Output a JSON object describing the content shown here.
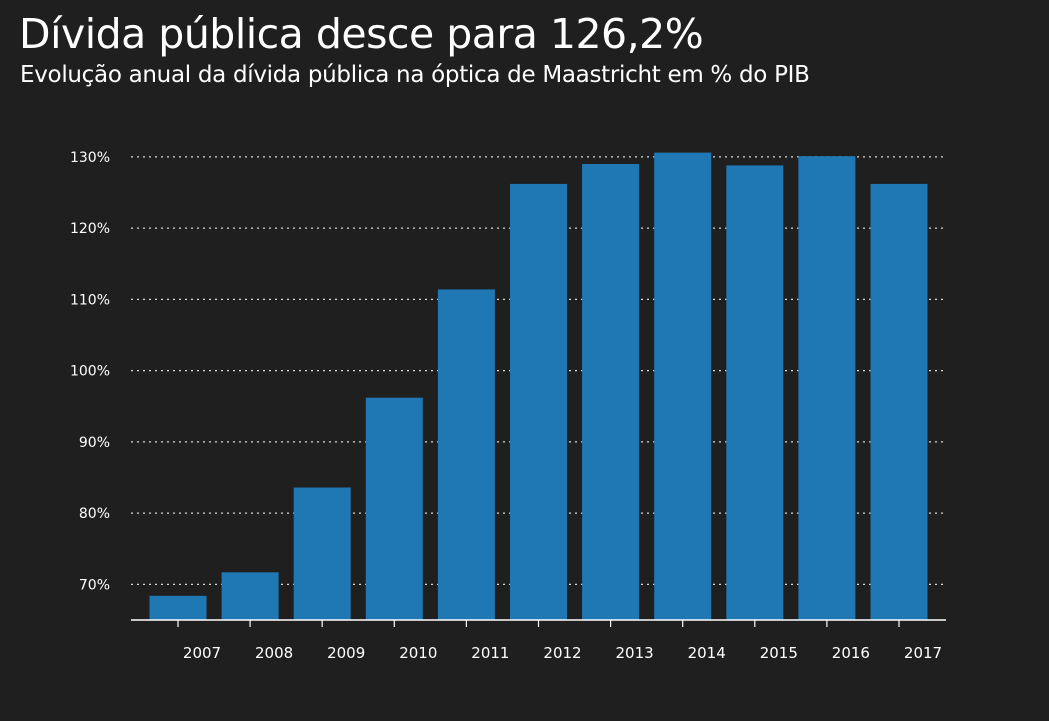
{
  "title": "Dívida pública desce para 126,2%",
  "subtitle": "Evolução anual da dívida pública na óptica de Maastricht em % do PIB",
  "colors": {
    "background": "#1f1f1f",
    "bar": "#1f77b4",
    "text": "#ffffff",
    "grid": "#d8d8d8"
  },
  "chart_data": {
    "type": "bar",
    "title": "Dívida pública desce para 126,2%",
    "subtitle": "Evolução anual da dívida pública na óptica de Maastricht em % do PIB",
    "xlabel": "",
    "ylabel": "",
    "categories": [
      "2007",
      "2008",
      "2009",
      "2010",
      "2011",
      "2012",
      "2013",
      "2014",
      "2015",
      "2016",
      "2017"
    ],
    "values": [
      68.4,
      71.7,
      83.6,
      96.2,
      111.4,
      126.2,
      129.0,
      130.6,
      128.8,
      130.1,
      126.2
    ],
    "ylim": [
      65,
      131
    ],
    "yticks": [
      70,
      80,
      90,
      100,
      110,
      120,
      130
    ],
    "ytick_labels": [
      "70%",
      "80%",
      "90%",
      "100%",
      "110%",
      "120%",
      "130%"
    ],
    "grid": true,
    "legend": "none"
  }
}
